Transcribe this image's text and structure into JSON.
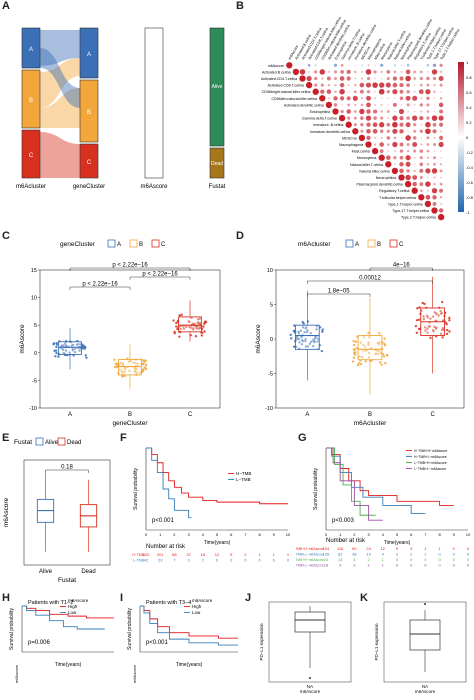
{
  "panels": {
    "A": {
      "label": "A",
      "axis_labels": [
        "m6Acluster",
        "geneCluster",
        "m6Ascore",
        "Fustat"
      ],
      "left_levels": [
        "A",
        "B",
        "C"
      ],
      "right_levels": [
        "Alive",
        "Dead"
      ],
      "colors": {
        "A": "#3b6fb6",
        "B": "#f3a73b",
        "C": "#d7301f",
        "alive": "#2e8b57",
        "dead": "#a6761d"
      }
    },
    "B": {
      "label": "B",
      "cells": [
        "m6Ascore",
        "Activated.B.cellna",
        "Activated.CD4.T.cellna",
        "Activated.CD8.T.cellna",
        "CD56bright.natural.killer.cellna",
        "CD56dim.natural.killer.cellna",
        "Activated.dendritic.cellna",
        "Eosinophilna",
        "Gamma.delta.T.cellna",
        "Immature..B.cellna",
        "Immature.dendritic.cellna",
        "MDSCna",
        "Macrophagena",
        "Mast.cellna",
        "Monocytena",
        "Natural.killer.T.cellna",
        "Natural.killer.cellna",
        "Neutrophilna",
        "Plasmacytoid.dendritic.cellna",
        "Regulatory.T.cellna",
        "T.follicular.helper.cellna",
        "Type.1.T.helper.cellna",
        "Type.17.T.helper.cellna",
        "Type.2.T.helper.cellna"
      ],
      "colorbar_ticks": [
        "1",
        "0.8",
        "0.6",
        "0.4",
        "0.2",
        "0",
        "-0.2",
        "-0.4",
        "-0.6",
        "-0.8",
        "-1"
      ]
    },
    "C": {
      "label": "C",
      "legend_title": "geneCluster",
      "legend_items": [
        "A",
        "B",
        "C"
      ],
      "ylabel": "m6Ascore",
      "xlabel": "geneCluster",
      "yticks": [
        "15",
        "10",
        "5",
        "0",
        "-5",
        "-10"
      ],
      "xticks": [
        "A",
        "B",
        "C"
      ],
      "pvals": [
        "p < 2.22e−16",
        "p < 2.22e−16",
        "p < 2.22e−16"
      ]
    },
    "D": {
      "label": "D",
      "legend_title": "m6Acluster",
      "legend_items": [
        "A",
        "B",
        "C"
      ],
      "ylabel": "m6Ascore",
      "xlabel": "m6Acluster",
      "yticks": [
        "10",
        "5",
        "0",
        "-5",
        "-10"
      ],
      "xticks": [
        "A",
        "B",
        "C"
      ],
      "pvals": [
        "4e−16",
        "0.00012",
        "1.8e−05"
      ]
    },
    "E": {
      "label": "E",
      "legend_title": "Fustat",
      "legend_items": [
        "Alive",
        "Dead"
      ],
      "ylabel": "m6Ascore",
      "xlabel": "Fustat",
      "pval": "0.18",
      "xticks": [
        "Alive",
        "Dead"
      ]
    },
    "F": {
      "label": "F",
      "ylabel": "Survival probability",
      "xlabel": "Time(years)",
      "legend": [
        "H−TMB",
        "L−TMB"
      ],
      "pval": "p<0.001",
      "risk_title": "Number at risk",
      "risk_rows": [
        {
          "name": "H−TMB",
          "values": [
            "320",
            "201",
            "88",
            "37",
            "16",
            "12",
            "5",
            "2",
            "1",
            "1",
            "1"
          ]
        },
        {
          "name": "L−TMB",
          "values": [
            "42",
            "23",
            "7",
            "3",
            "2",
            "0",
            "0",
            "0",
            "0",
            "0",
            "0"
          ]
        }
      ],
      "xticks": [
        "0",
        "1",
        "2",
        "3",
        "4",
        "5",
        "6",
        "7",
        "8",
        "9",
        "10"
      ]
    },
    "G": {
      "label": "G",
      "ylabel": "Survival probability",
      "xlabel": "Time(years)",
      "legend": [
        "H−TMB+H−m6Ascore",
        "H−TMB+L−m6Ascore",
        "L−TMB+H−m6Ascore",
        "L−TMB+L−m6Ascore"
      ],
      "pval": "p<0.003",
      "risk_title": "Number at risk",
      "risk_rows": [
        {
          "name": "H−TMB+H−m6Ascore",
          "values": [
            "194",
            "116",
            "50",
            "24",
            "12",
            "9",
            "3",
            "1",
            "1",
            "0",
            "0"
          ]
        },
        {
          "name": "H−TMB+L−m6Ascore",
          "values": [
            "126",
            "82",
            "38",
            "13",
            "4",
            "3",
            "2",
            "1",
            "0",
            "0",
            "0"
          ]
        },
        {
          "name": "L−TMB+H−m6Ascore",
          "values": [
            "24",
            "14",
            "4",
            "2",
            "1",
            "0",
            "0",
            "0",
            "0",
            "0",
            "0"
          ]
        },
        {
          "name": "L−TMB+L−m6Ascore",
          "values": [
            "18",
            "9",
            "3",
            "1",
            "1",
            "0",
            "0",
            "0",
            "0",
            "0",
            "0"
          ]
        }
      ],
      "xticks": [
        "0",
        "1",
        "2",
        "3",
        "4",
        "5",
        "6",
        "7",
        "8",
        "9",
        "10"
      ]
    },
    "H": {
      "label": "H",
      "title": "Patients with T1−2",
      "legend": [
        "m6Ascore",
        "High",
        "Low"
      ],
      "ylabel": "Survival probability",
      "xlabel": "Time(years)",
      "pval": "p=0.006",
      "risk_label": "m6Ascore"
    },
    "I": {
      "label": "I",
      "title": "Patients with T3−4",
      "legend": [
        "m6Ascore",
        "High",
        "Low"
      ],
      "ylabel": "Survival probability",
      "xlabel": "Time(years)",
      "pval": "p<0.001",
      "risk_label": "m6Ascore"
    },
    "J": {
      "label": "J",
      "ylabel": "PD−L1 expression",
      "xlabel": "m6Ascore",
      "xtick": "NA"
    },
    "K": {
      "label": "K",
      "ylabel": "PD−L1 expression",
      "xlabel": "m6Ascore",
      "xtick": "NA"
    }
  },
  "chart_data": [
    {
      "type": "box",
      "panel": "C",
      "categories": [
        "A",
        "B",
        "C"
      ],
      "series": [
        {
          "name": "A",
          "median": 1,
          "q1": -0.3,
          "q3": 2,
          "min": -3,
          "max": 4.5
        },
        {
          "name": "B",
          "median": -2.5,
          "q1": -4,
          "q3": -1.2,
          "min": -6.5,
          "max": 1.5
        },
        {
          "name": "C",
          "median": 5,
          "q1": 3.8,
          "q3": 6.5,
          "min": 2,
          "max": 9.5
        }
      ],
      "ylim": [
        -10,
        15
      ]
    },
    {
      "type": "box",
      "panel": "D",
      "categories": [
        "A",
        "B",
        "C"
      ],
      "series": [
        {
          "name": "A",
          "median": 0.5,
          "q1": -1.5,
          "q3": 2,
          "min": -6,
          "max": 7
        },
        {
          "name": "B",
          "median": -1.5,
          "q1": -3,
          "q3": 0.5,
          "min": -8,
          "max": 6
        },
        {
          "name": "C",
          "median": 2.5,
          "q1": 0.5,
          "q3": 4.5,
          "min": -5,
          "max": 9
        }
      ],
      "ylim": [
        -10,
        10
      ]
    },
    {
      "type": "box",
      "panel": "E",
      "categories": [
        "Alive",
        "Dead"
      ],
      "series": [
        {
          "name": "Alive",
          "median": 0.3,
          "q1": -1.5,
          "q3": 2,
          "min": -6,
          "max": 6
        },
        {
          "name": "Dead",
          "median": -0.5,
          "q1": -2.2,
          "q3": 1.2,
          "min": -6,
          "max": 5
        }
      ]
    }
  ]
}
